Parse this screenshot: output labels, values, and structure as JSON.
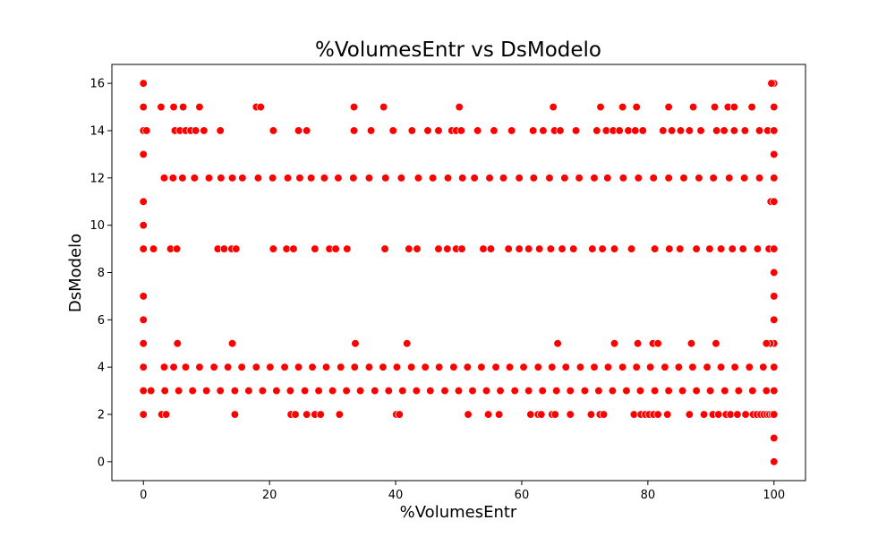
{
  "chart_data": {
    "type": "scatter",
    "title": "%VolumesEntr vs DsModelo",
    "xlabel": "%VolumesEntr",
    "ylabel": "DsModelo",
    "xlim": [
      -5,
      105
    ],
    "ylim": [
      -0.8,
      16.8
    ],
    "xticks": [
      0,
      20,
      40,
      60,
      80,
      100
    ],
    "yticks": [
      0,
      2,
      4,
      6,
      8,
      10,
      12,
      14,
      16
    ],
    "grid": false,
    "marker_color": "#ff0000",
    "marker_edge_color": "#ffffff",
    "series": [
      {
        "points": [
          [
            0,
            16
          ],
          [
            0,
            15
          ],
          [
            0,
            14
          ],
          [
            0.5,
            14
          ],
          [
            0,
            13
          ],
          [
            0,
            11
          ],
          [
            0,
            10
          ],
          [
            0,
            9
          ],
          [
            0,
            7
          ],
          [
            0,
            6
          ],
          [
            0,
            5
          ],
          [
            0,
            4
          ],
          [
            0,
            3
          ],
          [
            0,
            2
          ],
          [
            2.8,
            15
          ],
          [
            4.8,
            15
          ],
          [
            6.3,
            15
          ],
          [
            8.9,
            15
          ],
          [
            17.9,
            15
          ],
          [
            18.6,
            15
          ],
          [
            33.4,
            15
          ],
          [
            38.1,
            15
          ],
          [
            50.1,
            15
          ],
          [
            65,
            15
          ],
          [
            72.5,
            15
          ],
          [
            76,
            15
          ],
          [
            78.2,
            15
          ],
          [
            83.3,
            15
          ],
          [
            87.2,
            15
          ],
          [
            90.6,
            15
          ],
          [
            92.7,
            15
          ],
          [
            93.7,
            15
          ],
          [
            96.5,
            15
          ],
          [
            100,
            15
          ],
          [
            5,
            14
          ],
          [
            5.8,
            14
          ],
          [
            6.7,
            14
          ],
          [
            7.5,
            14
          ],
          [
            8.3,
            14
          ],
          [
            9.6,
            14
          ],
          [
            12.2,
            14
          ],
          [
            20.6,
            14
          ],
          [
            24.6,
            14
          ],
          [
            25.9,
            14
          ],
          [
            33.4,
            14
          ],
          [
            36.1,
            14
          ],
          [
            39.6,
            14
          ],
          [
            42.6,
            14
          ],
          [
            45.1,
            14
          ],
          [
            46.8,
            14
          ],
          [
            48.9,
            14
          ],
          [
            49.6,
            14
          ],
          [
            50.4,
            14
          ],
          [
            53,
            14
          ],
          [
            55.6,
            14
          ],
          [
            58.4,
            14
          ],
          [
            61.8,
            14
          ],
          [
            63.4,
            14
          ],
          [
            65.2,
            14
          ],
          [
            66.1,
            14
          ],
          [
            68.6,
            14
          ],
          [
            71.9,
            14
          ],
          [
            73.4,
            14
          ],
          [
            74.5,
            14
          ],
          [
            75.5,
            14
          ],
          [
            76.9,
            14
          ],
          [
            78,
            14
          ],
          [
            79.2,
            14
          ],
          [
            82.4,
            14
          ],
          [
            83.8,
            14
          ],
          [
            85.2,
            14
          ],
          [
            86.6,
            14
          ],
          [
            88.4,
            14
          ],
          [
            90.9,
            14
          ],
          [
            92.1,
            14
          ],
          [
            93.7,
            14
          ],
          [
            95.4,
            14
          ],
          [
            97.7,
            14
          ],
          [
            99,
            14
          ],
          [
            100,
            14
          ],
          [
            3.3,
            12
          ],
          [
            4.7,
            12
          ],
          [
            6.2,
            12
          ],
          [
            8.1,
            12
          ],
          [
            10.4,
            12
          ],
          [
            12.3,
            12
          ],
          [
            14.1,
            12
          ],
          [
            15.7,
            12
          ],
          [
            18.2,
            12
          ],
          [
            20.5,
            12
          ],
          [
            22.9,
            12
          ],
          [
            24.8,
            12
          ],
          [
            26.6,
            12
          ],
          [
            28.7,
            12
          ],
          [
            30.9,
            12
          ],
          [
            33.3,
            12
          ],
          [
            35.8,
            12
          ],
          [
            38.4,
            12
          ],
          [
            40.9,
            12
          ],
          [
            43.6,
            12
          ],
          [
            45.9,
            12
          ],
          [
            48.3,
            12
          ],
          [
            50.6,
            12
          ],
          [
            52.5,
            12
          ],
          [
            54.9,
            12
          ],
          [
            57.1,
            12
          ],
          [
            59.6,
            12
          ],
          [
            61.9,
            12
          ],
          [
            64.4,
            12
          ],
          [
            66.8,
            12
          ],
          [
            69.1,
            12
          ],
          [
            71.5,
            12
          ],
          [
            73.6,
            12
          ],
          [
            76.1,
            12
          ],
          [
            78.5,
            12
          ],
          [
            80.9,
            12
          ],
          [
            83.3,
            12
          ],
          [
            85.7,
            12
          ],
          [
            88.1,
            12
          ],
          [
            90.4,
            12
          ],
          [
            92.9,
            12
          ],
          [
            95.3,
            12
          ],
          [
            97.7,
            12
          ],
          [
            100,
            12
          ],
          [
            1.6,
            9
          ],
          [
            4.3,
            9
          ],
          [
            5.3,
            9
          ],
          [
            11.8,
            9
          ],
          [
            12.8,
            9
          ],
          [
            14,
            9
          ],
          [
            14.7,
            9
          ],
          [
            20.6,
            9
          ],
          [
            22.7,
            9
          ],
          [
            23.8,
            9
          ],
          [
            27.2,
            9
          ],
          [
            29.5,
            9
          ],
          [
            30.5,
            9
          ],
          [
            32.3,
            9
          ],
          [
            38.3,
            9
          ],
          [
            42.1,
            9
          ],
          [
            43.4,
            9
          ],
          [
            46.8,
            9
          ],
          [
            48.2,
            9
          ],
          [
            49.6,
            9
          ],
          [
            50.5,
            9
          ],
          [
            53.9,
            9
          ],
          [
            55.1,
            9
          ],
          [
            57.9,
            9
          ],
          [
            59.6,
            9
          ],
          [
            61.1,
            9
          ],
          [
            62.8,
            9
          ],
          [
            64.6,
            9
          ],
          [
            66.4,
            9
          ],
          [
            68.2,
            9
          ],
          [
            71.2,
            9
          ],
          [
            72.8,
            9
          ],
          [
            74.7,
            9
          ],
          [
            77.4,
            9
          ],
          [
            81.1,
            9
          ],
          [
            83.4,
            9
          ],
          [
            85.1,
            9
          ],
          [
            87.7,
            9
          ],
          [
            89.8,
            9
          ],
          [
            91.6,
            9
          ],
          [
            93.4,
            9
          ],
          [
            95.1,
            9
          ],
          [
            97.4,
            9
          ],
          [
            99.2,
            9
          ],
          [
            100,
            9
          ],
          [
            100,
            16
          ],
          [
            99.6,
            16
          ],
          [
            100,
            13
          ],
          [
            99.5,
            11
          ],
          [
            100,
            11
          ],
          [
            100,
            8
          ],
          [
            100,
            7
          ],
          [
            100,
            6
          ],
          [
            100,
            5
          ],
          [
            100,
            1
          ],
          [
            100,
            0
          ],
          [
            5.4,
            5
          ],
          [
            14.1,
            5
          ],
          [
            33.6,
            5
          ],
          [
            41.8,
            5
          ],
          [
            65.7,
            5
          ],
          [
            74.7,
            5
          ],
          [
            78.4,
            5
          ],
          [
            80.8,
            5
          ],
          [
            81.6,
            5
          ],
          [
            86.9,
            5
          ],
          [
            90.8,
            5
          ],
          [
            99.4,
            5
          ],
          [
            98.8,
            5
          ],
          [
            3.3,
            4
          ],
          [
            4.8,
            4
          ],
          [
            6.7,
            4
          ],
          [
            8.9,
            4
          ],
          [
            11.2,
            4
          ],
          [
            13.4,
            4
          ],
          [
            15.6,
            4
          ],
          [
            17.9,
            4
          ],
          [
            20.1,
            4
          ],
          [
            22.4,
            4
          ],
          [
            24.6,
            4
          ],
          [
            26.8,
            4
          ],
          [
            29,
            4
          ],
          [
            31.3,
            4
          ],
          [
            33.5,
            4
          ],
          [
            35.8,
            4
          ],
          [
            38,
            4
          ],
          [
            40.2,
            4
          ],
          [
            42.5,
            4
          ],
          [
            44.7,
            4
          ],
          [
            46.9,
            4
          ],
          [
            49.2,
            4
          ],
          [
            51.4,
            4
          ],
          [
            53.6,
            4
          ],
          [
            55.9,
            4
          ],
          [
            58.1,
            4
          ],
          [
            60.3,
            4
          ],
          [
            62.6,
            4
          ],
          [
            64.8,
            4
          ],
          [
            67,
            4
          ],
          [
            69.3,
            4
          ],
          [
            71.5,
            4
          ],
          [
            73.7,
            4
          ],
          [
            76,
            4
          ],
          [
            78.2,
            4
          ],
          [
            80.4,
            4
          ],
          [
            82.7,
            4
          ],
          [
            84.9,
            4
          ],
          [
            87.1,
            4
          ],
          [
            89.4,
            4
          ],
          [
            91.6,
            4
          ],
          [
            93.8,
            4
          ],
          [
            96.1,
            4
          ],
          [
            98.3,
            4
          ],
          [
            100,
            4
          ],
          [
            1.2,
            3
          ],
          [
            3.4,
            3
          ],
          [
            5.6,
            3
          ],
          [
            7.8,
            3
          ],
          [
            10,
            3
          ],
          [
            12.2,
            3
          ],
          [
            14.5,
            3
          ],
          [
            16.7,
            3
          ],
          [
            18.9,
            3
          ],
          [
            21.1,
            3
          ],
          [
            23.3,
            3
          ],
          [
            25.6,
            3
          ],
          [
            27.8,
            3
          ],
          [
            30,
            3
          ],
          [
            32.2,
            3
          ],
          [
            34.4,
            3
          ],
          [
            36.7,
            3
          ],
          [
            38.9,
            3
          ],
          [
            41.1,
            3
          ],
          [
            43.3,
            3
          ],
          [
            45.5,
            3
          ],
          [
            47.8,
            3
          ],
          [
            50,
            3
          ],
          [
            52.2,
            3
          ],
          [
            54.4,
            3
          ],
          [
            56.6,
            3
          ],
          [
            58.9,
            3
          ],
          [
            61.1,
            3
          ],
          [
            63.3,
            3
          ],
          [
            65.5,
            3
          ],
          [
            67.7,
            3
          ],
          [
            70,
            3
          ],
          [
            72.2,
            3
          ],
          [
            74.4,
            3
          ],
          [
            76.6,
            3
          ],
          [
            78.8,
            3
          ],
          [
            81.1,
            3
          ],
          [
            83.3,
            3
          ],
          [
            85.5,
            3
          ],
          [
            87.7,
            3
          ],
          [
            89.9,
            3
          ],
          [
            92.2,
            3
          ],
          [
            94.4,
            3
          ],
          [
            96.6,
            3
          ],
          [
            98.8,
            3
          ],
          [
            100,
            3
          ],
          [
            2.9,
            2
          ],
          [
            3.6,
            2
          ],
          [
            14.5,
            2
          ],
          [
            23.4,
            2
          ],
          [
            24.1,
            2
          ],
          [
            25.9,
            2
          ],
          [
            27.2,
            2
          ],
          [
            28.1,
            2
          ],
          [
            31.1,
            2
          ],
          [
            40.1,
            2
          ],
          [
            40.6,
            2
          ],
          [
            51.5,
            2
          ],
          [
            54.7,
            2
          ],
          [
            56.4,
            2
          ],
          [
            61.4,
            2
          ],
          [
            62.6,
            2
          ],
          [
            63.1,
            2
          ],
          [
            64.8,
            2
          ],
          [
            65.3,
            2
          ],
          [
            67.7,
            2
          ],
          [
            71,
            2
          ],
          [
            72.4,
            2
          ],
          [
            73,
            2
          ],
          [
            77.8,
            2
          ],
          [
            78.9,
            2
          ],
          [
            79.6,
            2
          ],
          [
            80.2,
            2
          ],
          [
            80.9,
            2
          ],
          [
            81.6,
            2
          ],
          [
            83.1,
            2
          ],
          [
            86.6,
            2
          ],
          [
            88.9,
            2
          ],
          [
            90.3,
            2
          ],
          [
            91.2,
            2
          ],
          [
            92.4,
            2
          ],
          [
            93.1,
            2
          ],
          [
            94.2,
            2
          ],
          [
            95.5,
            2
          ],
          [
            96.7,
            2
          ],
          [
            97.3,
            2
          ],
          [
            97.9,
            2
          ],
          [
            98.4,
            2
          ],
          [
            98.9,
            2
          ],
          [
            99.3,
            2
          ],
          [
            99.7,
            2
          ],
          [
            100,
            2
          ]
        ]
      }
    ]
  }
}
